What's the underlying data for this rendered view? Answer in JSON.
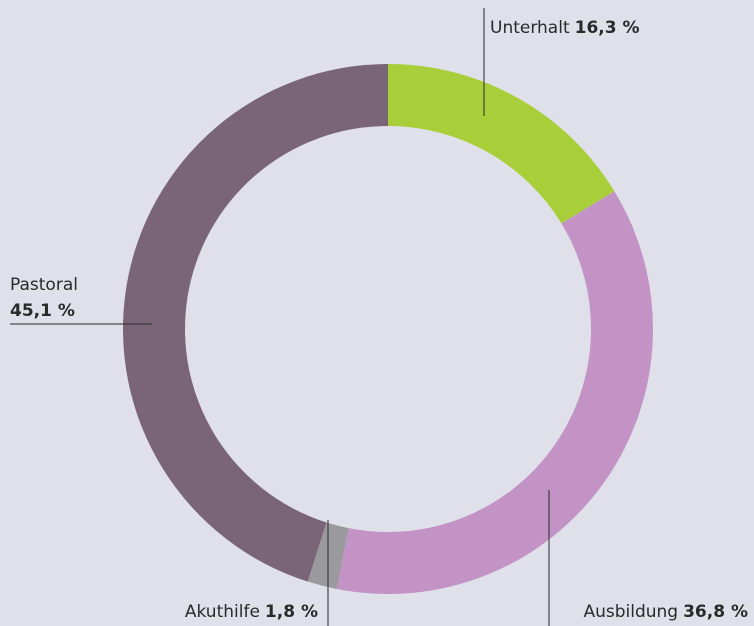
{
  "chart_data": {
    "type": "donut",
    "categories": [
      "Unterhalt",
      "Ausbildung",
      "Akuthilfe",
      "Pastoral"
    ],
    "values": [
      16.3,
      36.8,
      1.8,
      45.1
    ],
    "value_labels": [
      "16,3 %",
      "36,8 %",
      "1,8 %",
      "45,1 %"
    ],
    "colors": [
      "#a8cf3a",
      "#c293c4",
      "#9a9a9e",
      "#796577"
    ]
  }
}
